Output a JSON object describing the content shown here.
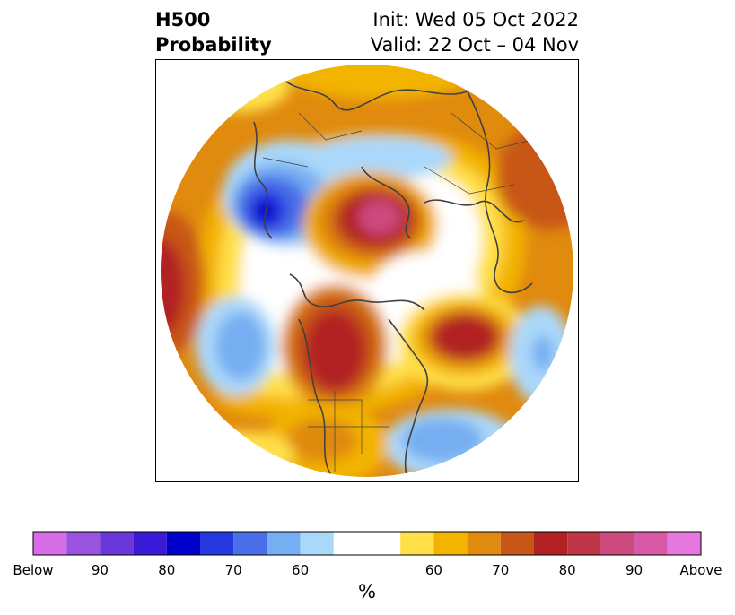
{
  "title": {
    "left_line1": "H500",
    "left_line2": "Probability",
    "right_line1": "Init: Wed 05 Oct 2022",
    "right_line2": "Valid: 22 Oct – 04 Nov"
  },
  "colorbar": {
    "unit": "%",
    "colors": [
      "#d76ee8",
      "#9a52e0",
      "#6a38d8",
      "#3a1ad6",
      "#0000cd",
      "#2538de",
      "#4a6ee8",
      "#76aef2",
      "#aad8fa",
      "#ffffff",
      "#ffe04a",
      "#f3b400",
      "#e08a0e",
      "#c85618",
      "#b22222",
      "#c03448",
      "#cc4a7e",
      "#d85aa6",
      "#e478dc"
    ],
    "tick_labels": [
      "Below",
      "90",
      "80",
      "70",
      "60",
      "60",
      "70",
      "80",
      "90",
      "Above"
    ]
  },
  "legend_colors": {
    "below": "#4a6ee8",
    "above": "#b22222",
    "neutral": "#ffffff",
    "coastline": "#404040"
  }
}
